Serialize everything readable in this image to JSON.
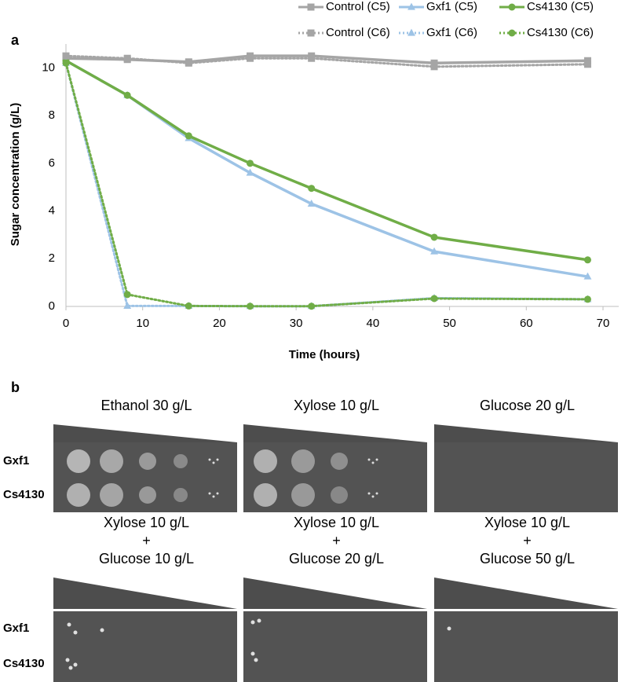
{
  "panel_labels": [
    "a",
    "b"
  ],
  "chart_data": {
    "type": "line",
    "x_label": "Time (hours)",
    "y_label": "Sugar concentration (g/L)",
    "x": [
      0,
      8,
      16,
      24,
      32,
      48,
      68
    ],
    "xlim": [
      0,
      70
    ],
    "xticks": [
      0,
      10,
      20,
      30,
      40,
      50,
      60,
      70
    ],
    "ylim": [
      0,
      11
    ],
    "yticks": [
      0,
      2,
      4,
      6,
      8,
      10
    ],
    "grid": false,
    "series": [
      {
        "name": "Control (C5)",
        "color": "#a5a5a5",
        "marker": "square",
        "style": "solid",
        "values": [
          10.4,
          10.35,
          10.25,
          10.5,
          10.5,
          10.2,
          10.3
        ]
      },
      {
        "name": "Gxf1 (C5)",
        "color": "#9dc3e6",
        "marker": "triangle",
        "style": "solid",
        "values": [
          10.3,
          8.85,
          7.05,
          5.6,
          4.3,
          2.3,
          1.25
        ]
      },
      {
        "name": "Cs4130 (C5)",
        "color": "#70ad47",
        "marker": "circle",
        "style": "solid",
        "values": [
          10.3,
          8.85,
          7.15,
          6.0,
          4.95,
          2.9,
          1.95
        ]
      },
      {
        "name": "Control (C6)",
        "color": "#a5a5a5",
        "marker": "square",
        "style": "dotted",
        "values": [
          10.5,
          10.4,
          10.2,
          10.4,
          10.4,
          10.05,
          10.15
        ]
      },
      {
        "name": "Gxf1 (C6)",
        "color": "#9dc3e6",
        "marker": "triangle",
        "style": "dotted",
        "values": [
          10.2,
          0.02,
          0.02,
          0.01,
          0.01,
          0.35,
          0.3
        ]
      },
      {
        "name": "Cs4130 (C6)",
        "color": "#70ad47",
        "marker": "circle",
        "style": "dotted",
        "values": [
          10.2,
          0.5,
          0.02,
          0.01,
          0.01,
          0.33,
          0.3
        ]
      }
    ]
  },
  "panel_b": {
    "strains": [
      "Gxf1",
      "Cs4130"
    ],
    "conditions": [
      [
        "Ethanol 30 g/L"
      ],
      [
        "Xylose 10 g/L"
      ],
      [
        "Glucose 20 g/L"
      ],
      [
        "Xylose 10 g/L",
        "+",
        "Glucose 10 g/L"
      ],
      [
        "Xylose 10 g/L",
        "+",
        "Glucose 20 g/L"
      ],
      [
        "Xylose 10 g/L",
        "+",
        "Glucose 50 g/L"
      ]
    ]
  }
}
